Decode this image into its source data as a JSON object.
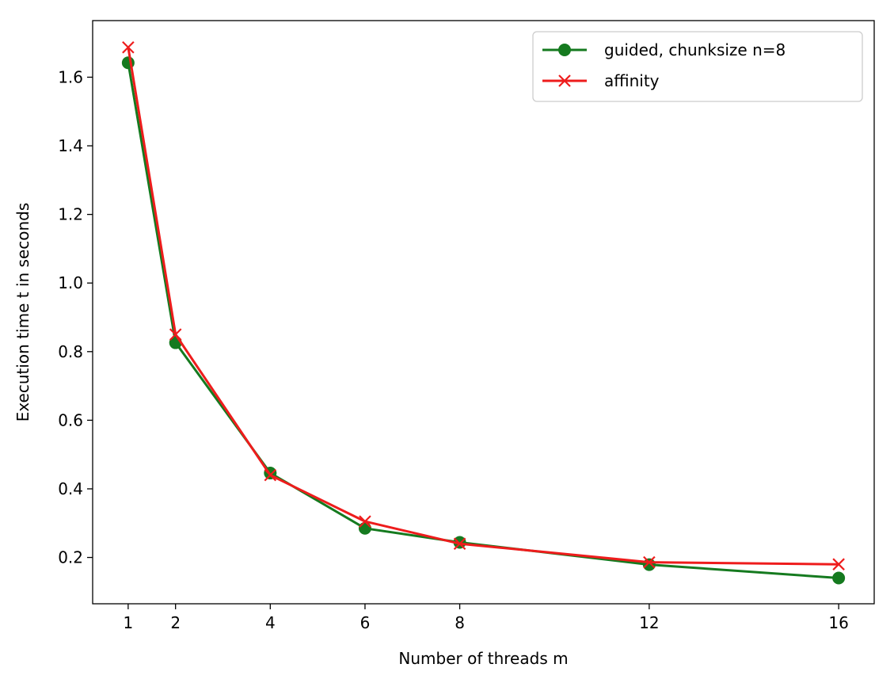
{
  "chart_data": {
    "type": "line",
    "title": "",
    "xlabel": "Number of threads m",
    "ylabel": "Execution time t in seconds",
    "xlim": [
      0.25,
      16.75
    ],
    "ylim": [
      0.065,
      1.765
    ],
    "xticks": [
      1,
      2,
      4,
      6,
      8,
      12,
      16
    ],
    "xtick_labels": [
      "1",
      "2",
      "4",
      "6",
      "8",
      "12",
      "16"
    ],
    "yticks": [
      0.2,
      0.4,
      0.6,
      0.8,
      1.0,
      1.2,
      1.4,
      1.6
    ],
    "ytick_labels": [
      "0.2",
      "0.4",
      "0.6",
      "0.8",
      "1.0",
      "1.2",
      "1.4",
      "1.6"
    ],
    "grid": false,
    "legend_position": "top-right",
    "x": [
      1,
      2,
      4,
      6,
      8,
      12,
      16
    ],
    "series": [
      {
        "name": "guided, chunksize n=8",
        "values": [
          1.642,
          0.826,
          0.446,
          0.285,
          0.244,
          0.179,
          0.14
        ],
        "color": "#157a1f",
        "marker": "circle"
      },
      {
        "name": "affinity",
        "values": [
          1.687,
          0.85,
          0.44,
          0.305,
          0.24,
          0.186,
          0.18
        ],
        "color": "#ee1c1c",
        "marker": "x"
      }
    ]
  }
}
